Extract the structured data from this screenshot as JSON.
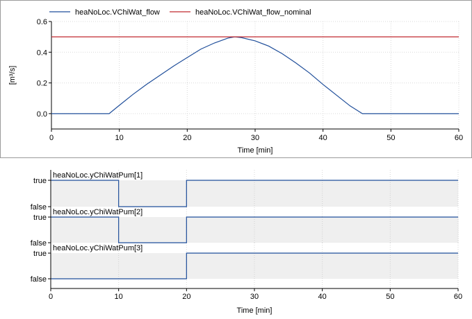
{
  "chart_data": [
    {
      "type": "line",
      "series": [
        {
          "name": "heaNoLoc.VChiWat_flow",
          "color": "#1f4e9a",
          "x": [
            0,
            8.5,
            10,
            12,
            14,
            16,
            18,
            20,
            22,
            24,
            26,
            27,
            28,
            30,
            32,
            34,
            36,
            38,
            40,
            42,
            44,
            45.8,
            60
          ],
          "y": [
            0,
            0,
            0.054,
            0.125,
            0.19,
            0.25,
            0.31,
            0.365,
            0.42,
            0.46,
            0.492,
            0.5,
            0.495,
            0.474,
            0.44,
            0.39,
            0.33,
            0.265,
            0.19,
            0.12,
            0.05,
            0,
            0
          ]
        },
        {
          "name": "heaNoLoc.VChiWat_flow_nominal",
          "color": "#c0272d",
          "x": [
            0,
            60
          ],
          "y": [
            0.5,
            0.5
          ]
        }
      ],
      "xlabel": "Time [min]",
      "ylabel": "[m³/s]",
      "xlim": [
        0,
        60
      ],
      "ylim": [
        -0.1,
        0.6
      ],
      "xticks": [
        "0",
        "10",
        "20",
        "30",
        "40",
        "50",
        "60"
      ],
      "yticks": [
        "0.0",
        "0.2",
        "0.4",
        "0.6"
      ],
      "grid": true,
      "legend": "top"
    },
    {
      "type": "line",
      "true_label": "true",
      "false_label": "false",
      "series": [
        {
          "name": "heaNoLoc.yChiWatPum[1]",
          "color": "#1f4e9a",
          "x": [
            0,
            10,
            10,
            20,
            20,
            60
          ],
          "y": [
            1,
            1,
            0,
            0,
            1,
            1
          ]
        },
        {
          "name": "heaNoLoc.yChiWatPum[2]",
          "color": "#1f4e9a",
          "x": [
            0,
            10,
            10,
            20,
            20,
            60
          ],
          "y": [
            1,
            1,
            0,
            0,
            1,
            1
          ]
        },
        {
          "name": "heaNoLoc.yChiWatPum[3]",
          "color": "#1f4e9a",
          "x": [
            0,
            20,
            20,
            60
          ],
          "y": [
            0,
            0,
            1,
            1
          ]
        }
      ],
      "xlabel": "Time [min]",
      "xlim": [
        0,
        60
      ],
      "xticks": [
        "0",
        "10",
        "20",
        "30",
        "40",
        "50",
        "60"
      ],
      "grid": true
    }
  ]
}
